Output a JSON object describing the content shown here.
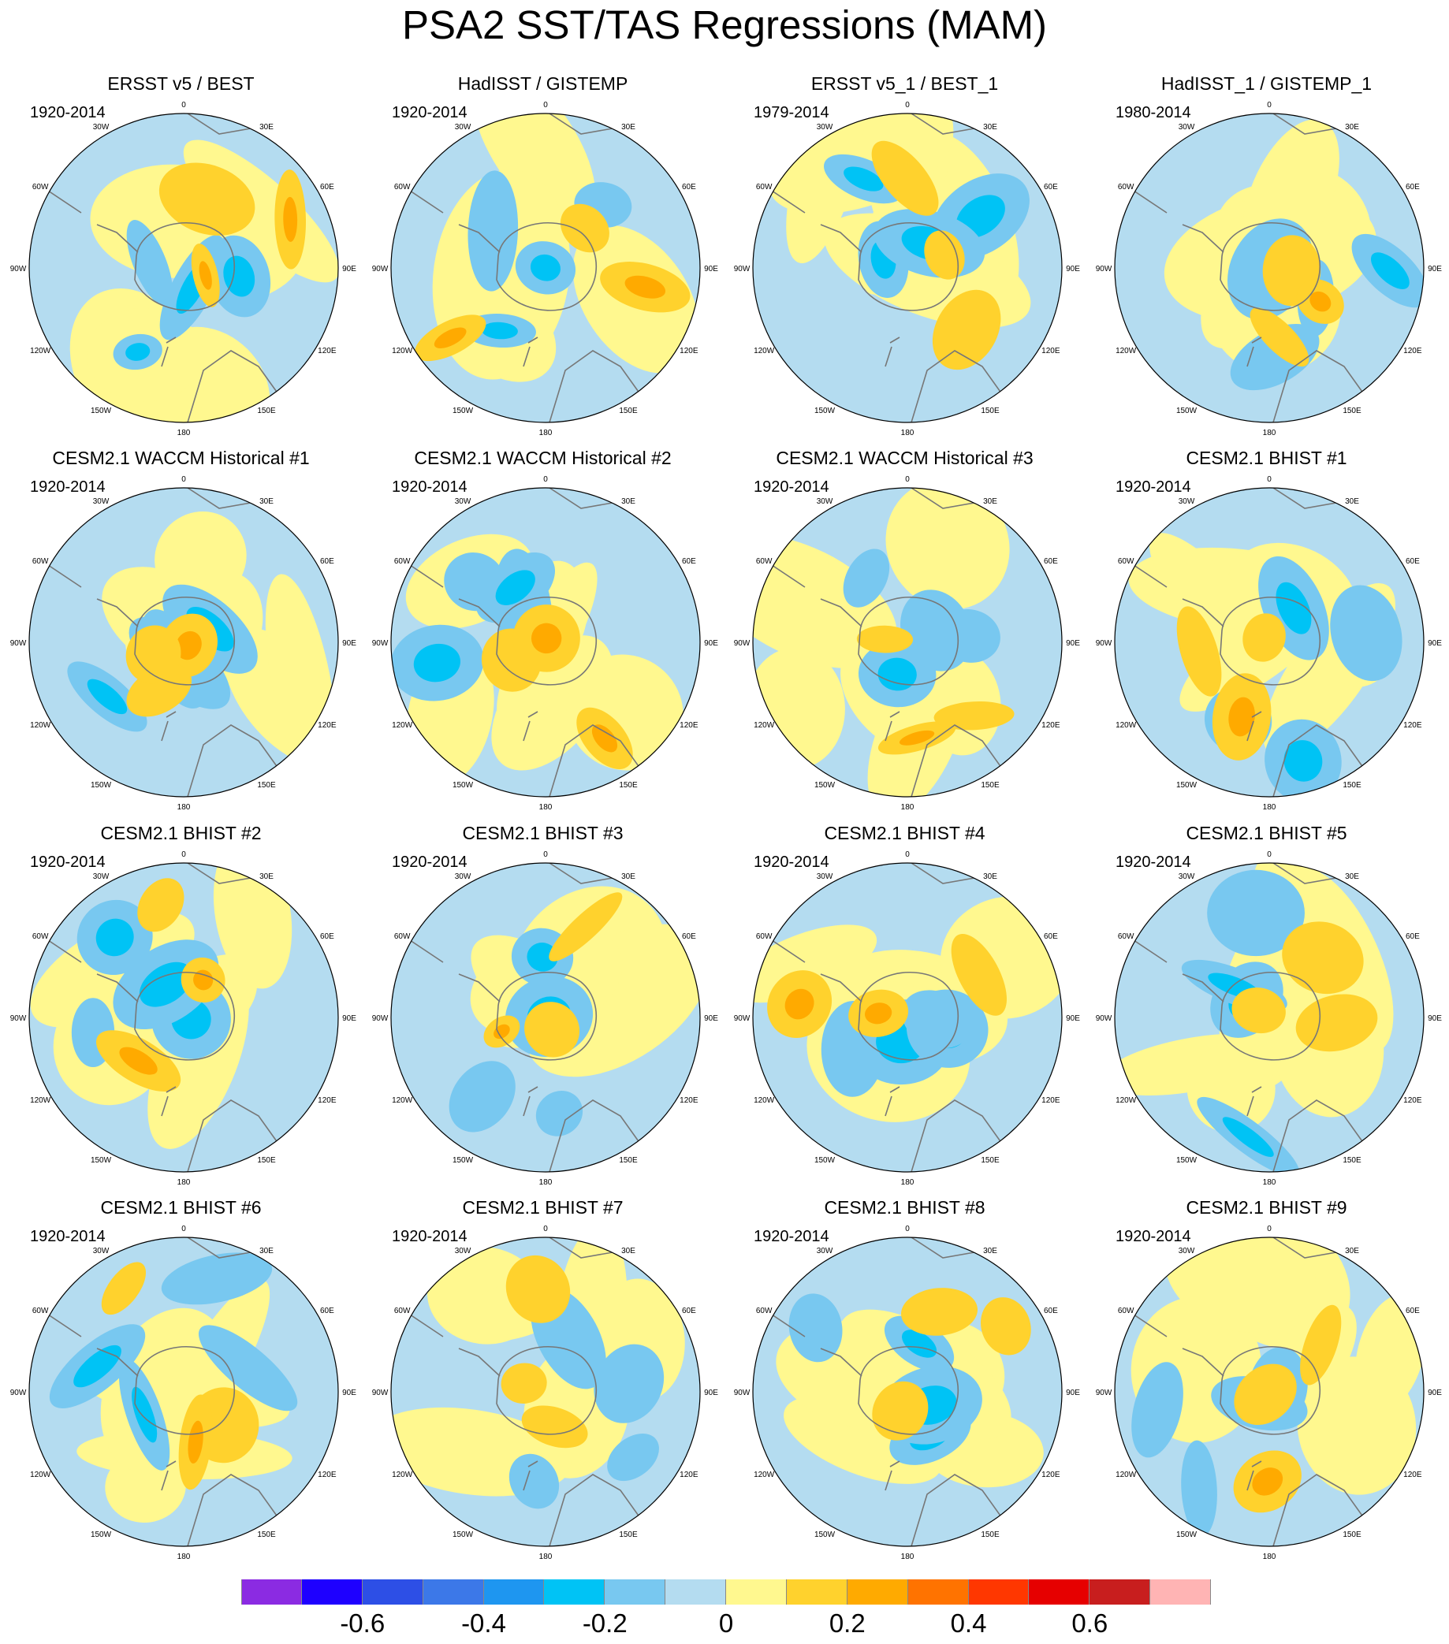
{
  "figure": {
    "title": "PSA2 SST/TAS Regressions (MAM)"
  },
  "longitude_labels": [
    "0",
    "30E",
    "60E",
    "90E",
    "120E",
    "150E",
    "180",
    "150W",
    "120W",
    "90W",
    "60W",
    "30W"
  ],
  "panels": [
    {
      "title": "ERSST v5 / BEST",
      "period": "1920-2014"
    },
    {
      "title": "HadISST / GISTEMP",
      "period": "1920-2014"
    },
    {
      "title": "ERSST v5_1 / BEST_1",
      "period": "1979-2014"
    },
    {
      "title": "HadISST_1 / GISTEMP_1",
      "period": "1980-2014"
    },
    {
      "title": "CESM2.1 WACCM Historical #1",
      "period": "1920-2014"
    },
    {
      "title": "CESM2.1 WACCM Historical #2",
      "period": "1920-2014"
    },
    {
      "title": "CESM2.1 WACCM Historical #3",
      "period": "1920-2014"
    },
    {
      "title": "CESM2.1 BHIST #1",
      "period": "1920-2014"
    },
    {
      "title": "CESM2.1 BHIST #2",
      "period": "1920-2014"
    },
    {
      "title": "CESM2.1 BHIST #3",
      "period": "1920-2014"
    },
    {
      "title": "CESM2.1 BHIST #4",
      "period": "1920-2014"
    },
    {
      "title": "CESM2.1 BHIST #5",
      "period": "1920-2014"
    },
    {
      "title": "CESM2.1 BHIST #6",
      "period": "1920-2014"
    },
    {
      "title": "CESM2.1 BHIST #7",
      "period": "1920-2014"
    },
    {
      "title": "CESM2.1 BHIST #8",
      "period": "1920-2014"
    },
    {
      "title": "CESM2.1 BHIST #9",
      "period": "1920-2014"
    }
  ],
  "colorbar": {
    "colors": [
      "#8b2be2",
      "#1e00ff",
      "#2d4fe6",
      "#3c78e8",
      "#1e96f0",
      "#00c3f5",
      "#78c8f0",
      "#b4dcf0",
      "#fff88f",
      "#ffd22d",
      "#ffaa00",
      "#ff7300",
      "#ff3700",
      "#e60000",
      "#c81e1e",
      "#ffb4b4"
    ],
    "tick_labels": [
      "-0.6",
      "-0.4",
      "-0.2",
      "0",
      "0.2",
      "0.4",
      "0.6"
    ]
  }
}
